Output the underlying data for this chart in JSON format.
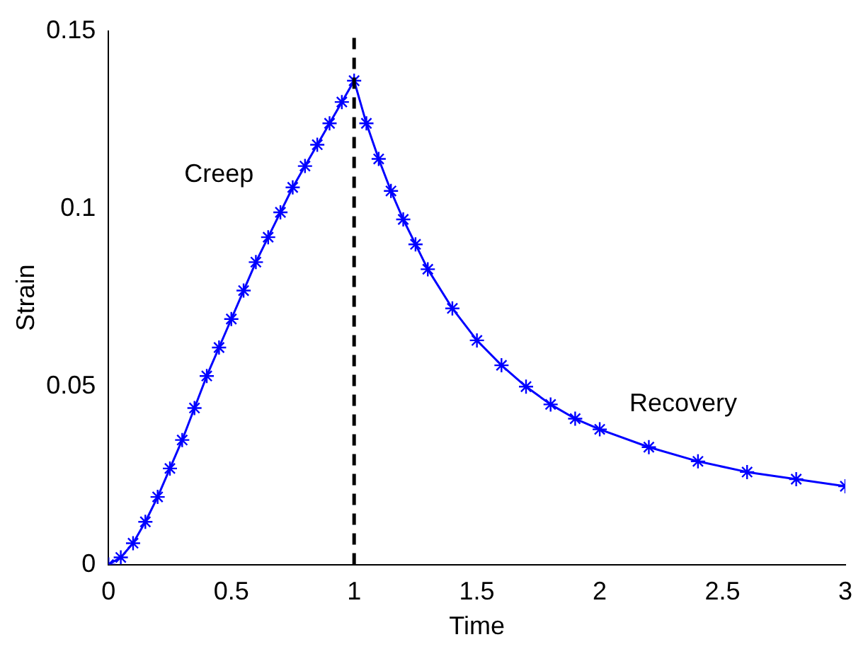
{
  "chart_data": {
    "type": "line",
    "xlabel": "Time",
    "ylabel": "Strain",
    "x": [
      0,
      0.05,
      0.1,
      0.15,
      0.2,
      0.25,
      0.3,
      0.35,
      0.4,
      0.45,
      0.5,
      0.55,
      0.6,
      0.65,
      0.7,
      0.75,
      0.8,
      0.85,
      0.9,
      0.95,
      1.0,
      1.05,
      1.1,
      1.15,
      1.2,
      1.25,
      1.3,
      1.4,
      1.5,
      1.6,
      1.7,
      1.8,
      1.9,
      2.0,
      2.2,
      2.4,
      2.6,
      2.8,
      3.0
    ],
    "series": [
      {
        "color": "#0000ff",
        "values": [
          0,
          0.002,
          0.006,
          0.012,
          0.019,
          0.027,
          0.035,
          0.044,
          0.053,
          0.061,
          0.069,
          0.077,
          0.085,
          0.092,
          0.099,
          0.106,
          0.112,
          0.118,
          0.124,
          0.13,
          0.136,
          0.124,
          0.114,
          0.105,
          0.097,
          0.09,
          0.083,
          0.072,
          0.063,
          0.056,
          0.05,
          0.045,
          0.041,
          0.038,
          0.033,
          0.029,
          0.026,
          0.024,
          0.022
        ]
      }
    ],
    "marker": "cross",
    "xlim": [
      0,
      3
    ],
    "xticks": [
      0,
      0.5,
      1,
      1.5,
      2,
      2.5,
      3
    ],
    "ylim": [
      0,
      0.15
    ],
    "yticks": [
      0,
      0.05,
      0.1,
      0.15
    ],
    "grid": false,
    "legend": false,
    "ref_lines": [
      {
        "axis": "x",
        "value": 1,
        "color": "#000000",
        "line_style": "dashed"
      }
    ],
    "annotations": [
      "Creep",
      "Recovery"
    ]
  }
}
